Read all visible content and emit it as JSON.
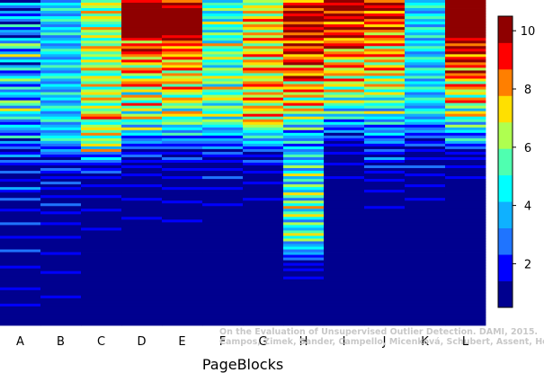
{
  "chart_data": {
    "type": "heatmap",
    "xlabel": "PageBlocks",
    "categories": [
      "A",
      "B",
      "C",
      "D",
      "E",
      "F",
      "G",
      "H",
      "I",
      "J",
      "K",
      "L"
    ],
    "colorbar": {
      "range": [
        0.5,
        10.5
      ],
      "ticks": [
        2,
        4,
        6,
        8,
        10
      ],
      "colors": [
        "#00008f",
        "#0000ff",
        "#1f74ff",
        "#0fb1ff",
        "#00ffff",
        "#4fffb0",
        "#afff50",
        "#ffe000",
        "#ff7f00",
        "#ff0000",
        "#8f0000"
      ]
    },
    "row_count": 120,
    "columns": [
      [
        1,
        5,
        3,
        1,
        4,
        2,
        5,
        3,
        1,
        6,
        2,
        4,
        3,
        1,
        5,
        3,
        7,
        6,
        2,
        4,
        8,
        3,
        5,
        1,
        4,
        6,
        2,
        3,
        5,
        7,
        4,
        2,
        6,
        3,
        5,
        4,
        2,
        7,
        6,
        3,
        8,
        5,
        4,
        6,
        3,
        2,
        5,
        4,
        3,
        2,
        6,
        1,
        4,
        2,
        3,
        1,
        2,
        4,
        1,
        3,
        2,
        1,
        1,
        3,
        1,
        1,
        2,
        1,
        1,
        4,
        2,
        1,
        1,
        3,
        1,
        1,
        1,
        2,
        1,
        1,
        1,
        1,
        3,
        1,
        1,
        1,
        1,
        2,
        1,
        1,
        1,
        1,
        3,
        1,
        1,
        1,
        1,
        1,
        2,
        1,
        1,
        1,
        1,
        1,
        1,
        1,
        2,
        1,
        1,
        1,
        1,
        1,
        2,
        1,
        1,
        1,
        1,
        1,
        1,
        1
      ],
      [
        3,
        5,
        4,
        6,
        4,
        3,
        5,
        6,
        4,
        3,
        5,
        4,
        6,
        3,
        4,
        5,
        3,
        4,
        6,
        5,
        4,
        3,
        5,
        4,
        6,
        4,
        3,
        5,
        6,
        4,
        3,
        5,
        4,
        3,
        6,
        4,
        5,
        3,
        4,
        6,
        5,
        3,
        4,
        5,
        6,
        3,
        4,
        5,
        3,
        4,
        5,
        6,
        4,
        3,
        2,
        4,
        3,
        2,
        1,
        3,
        2,
        1,
        3,
        2,
        1,
        2,
        1,
        3,
        1,
        2,
        1,
        1,
        2,
        1,
        1,
        3,
        1,
        1,
        2,
        1,
        1,
        1,
        2,
        1,
        1,
        1,
        1,
        2,
        1,
        1,
        1,
        1,
        1,
        2,
        1,
        1,
        1,
        1,
        1,
        1,
        2,
        1,
        1,
        1,
        1,
        1,
        1,
        1,
        1,
        2,
        1,
        1,
        1,
        1,
        1,
        1,
        1,
        1,
        1,
        1
      ],
      [
        6,
        8,
        7,
        5,
        9,
        6,
        8,
        7,
        6,
        5,
        9,
        7,
        6,
        8,
        5,
        7,
        6,
        9,
        8,
        6,
        7,
        5,
        8,
        6,
        7,
        9,
        6,
        5,
        8,
        7,
        6,
        9,
        5,
        7,
        8,
        6,
        9,
        7,
        5,
        8,
        6,
        7,
        9,
        10,
        6,
        5,
        7,
        8,
        6,
        9,
        5,
        7,
        6,
        8,
        4,
        9,
        3,
        2,
        5,
        3,
        2,
        1,
        2,
        3,
        1,
        2,
        1,
        1,
        2,
        1,
        1,
        1,
        2,
        1,
        1,
        1,
        1,
        2,
        1,
        1,
        1,
        1,
        1,
        1,
        2,
        1,
        1,
        1,
        1,
        1,
        1,
        1,
        1,
        1,
        1,
        1,
        1,
        1,
        1,
        1,
        1,
        1,
        1,
        1,
        1,
        1,
        1,
        1,
        1,
        1,
        1,
        1,
        1,
        1,
        1,
        1,
        1,
        1,
        1,
        1
      ],
      [
        10,
        11,
        11,
        11,
        11,
        11,
        11,
        11,
        11,
        11,
        11,
        11,
        11,
        11,
        10,
        7,
        10,
        9,
        11,
        10,
        9,
        7,
        10,
        8,
        6,
        9,
        10,
        7,
        5,
        8,
        9,
        10,
        6,
        8,
        4,
        9,
        7,
        5,
        10,
        6,
        8,
        4,
        7,
        9,
        5,
        6,
        3,
        8,
        4,
        5,
        2,
        3,
        4,
        2,
        3,
        1,
        2,
        3,
        1,
        2,
        1,
        2,
        1,
        1,
        2,
        1,
        1,
        1,
        2,
        1,
        1,
        1,
        1,
        2,
        1,
        1,
        1,
        1,
        1,
        1,
        2,
        1,
        1,
        1,
        1,
        1,
        1,
        1,
        1,
        1,
        1,
        1,
        1,
        1,
        1,
        1,
        1,
        1,
        1,
        1,
        1,
        1,
        1,
        1,
        1,
        1,
        1,
        1,
        1,
        1,
        1,
        1,
        1,
        1,
        1,
        1,
        1,
        1,
        1,
        1
      ],
      [
        9,
        11,
        10,
        11,
        11,
        11,
        11,
        11,
        11,
        11,
        11,
        11,
        11,
        10,
        11,
        9,
        10,
        8,
        10,
        9,
        8,
        10,
        7,
        9,
        8,
        10,
        6,
        9,
        7,
        8,
        9,
        6,
        10,
        8,
        7,
        5,
        9,
        8,
        6,
        7,
        4,
        9,
        8,
        5,
        6,
        7,
        4,
        5,
        3,
        6,
        2,
        4,
        3,
        2,
        3,
        1,
        2,
        1,
        3,
        2,
        1,
        1,
        2,
        1,
        1,
        2,
        1,
        1,
        1,
        2,
        1,
        1,
        1,
        1,
        2,
        1,
        1,
        1,
        1,
        1,
        1,
        2,
        1,
        1,
        1,
        1,
        1,
        1,
        1,
        1,
        1,
        1,
        1,
        1,
        1,
        1,
        1,
        1,
        1,
        1,
        1,
        1,
        1,
        1,
        1,
        1,
        1,
        1,
        1,
        1,
        1,
        1,
        1,
        1,
        1,
        1,
        1,
        1,
        1,
        1
      ],
      [
        4,
        6,
        5,
        7,
        4,
        5,
        6,
        4,
        8,
        5,
        6,
        4,
        7,
        5,
        6,
        4,
        9,
        6,
        5,
        7,
        6,
        8,
        5,
        6,
        4,
        7,
        6,
        5,
        8,
        6,
        7,
        4,
        9,
        6,
        5,
        7,
        8,
        6,
        4,
        7,
        6,
        5,
        8,
        4,
        7,
        6,
        5,
        3,
        4,
        5,
        2,
        4,
        3,
        2,
        4,
        1,
        3,
        2,
        1,
        2,
        1,
        1,
        2,
        1,
        1,
        3,
        1,
        1,
        1,
        2,
        1,
        1,
        1,
        1,
        1,
        2,
        1,
        1,
        1,
        1,
        1,
        1,
        1,
        1,
        1,
        1,
        1,
        1,
        1,
        1,
        1,
        1,
        1,
        1,
        1,
        1,
        1,
        1,
        1,
        1,
        1,
        1,
        1,
        1,
        1,
        1,
        1,
        1,
        1,
        1,
        1,
        1,
        1,
        1,
        1,
        1,
        1,
        1,
        1,
        1
      ],
      [
        7,
        6,
        8,
        7,
        9,
        6,
        8,
        10,
        7,
        9,
        8,
        6,
        9,
        7,
        10,
        8,
        6,
        9,
        7,
        8,
        10,
        6,
        9,
        8,
        7,
        10,
        9,
        6,
        8,
        7,
        9,
        10,
        8,
        6,
        9,
        7,
        10,
        8,
        6,
        9,
        8,
        7,
        10,
        6,
        9,
        8,
        7,
        6,
        5,
        4,
        6,
        3,
        5,
        4,
        2,
        3,
        1,
        2,
        1,
        3,
        2,
        1,
        1,
        2,
        1,
        1,
        1,
        2,
        1,
        1,
        1,
        1,
        1,
        2,
        1,
        1,
        1,
        1,
        1,
        1,
        1,
        1,
        1,
        1,
        1,
        1,
        1,
        1,
        1,
        1,
        1,
        1,
        1,
        1,
        1,
        1,
        1,
        1,
        1,
        1,
        1,
        1,
        1,
        1,
        1,
        1,
        1,
        1,
        1,
        1,
        1,
        1,
        1,
        1,
        1,
        1,
        1,
        1,
        1,
        1
      ],
      [
        8,
        10,
        11,
        9,
        11,
        10,
        11,
        11,
        9,
        11,
        10,
        11,
        9,
        11,
        10,
        8,
        11,
        9,
        10,
        11,
        8,
        9,
        10,
        11,
        7,
        10,
        9,
        8,
        11,
        10,
        6,
        9,
        8,
        10,
        7,
        9,
        5,
        8,
        10,
        6,
        9,
        7,
        4,
        8,
        5,
        6,
        3,
        7,
        2,
        5,
        4,
        3,
        6,
        2,
        5,
        3,
        4,
        6,
        3,
        5,
        4,
        7,
        3,
        5,
        8,
        4,
        6,
        3,
        7,
        5,
        4,
        8,
        6,
        3,
        7,
        5,
        9,
        4,
        6,
        8,
        5,
        3,
        7,
        5,
        4,
        6,
        8,
        5,
        7,
        3,
        4,
        5,
        3,
        4,
        2,
        3,
        1,
        2,
        1,
        2,
        1,
        1,
        2,
        1,
        1,
        1,
        1,
        1,
        1,
        1,
        1,
        1,
        1,
        1,
        1,
        1,
        1,
        1,
        1,
        1
      ],
      [
        11,
        10,
        11,
        11,
        9,
        11,
        10,
        11,
        8,
        10,
        11,
        9,
        10,
        11,
        8,
        9,
        10,
        11,
        7,
        9,
        10,
        8,
        6,
        9,
        10,
        7,
        8,
        9,
        6,
        10,
        7,
        8,
        5,
        9,
        6,
        7,
        4,
        8,
        6,
        5,
        3,
        7,
        4,
        6,
        2,
        5,
        3,
        2,
        4,
        1,
        3,
        2,
        1,
        2,
        1,
        1,
        2,
        1,
        1,
        1,
        2,
        1,
        1,
        1,
        1,
        2,
        1,
        1,
        1,
        1,
        1,
        1,
        1,
        1,
        1,
        1,
        1,
        1,
        1,
        1,
        1,
        1,
        1,
        1,
        1,
        1,
        1,
        1,
        1,
        1,
        1,
        1,
        1,
        1,
        1,
        1,
        1,
        1,
        1,
        1,
        1,
        1,
        1,
        1,
        1,
        1,
        1,
        1,
        1,
        1,
        1,
        1,
        1,
        1,
        1,
        1,
        1,
        1,
        1,
        1
      ],
      [
        9,
        11,
        10,
        11,
        8,
        10,
        11,
        9,
        10,
        8,
        11,
        9,
        7,
        10,
        9,
        8,
        10,
        6,
        9,
        8,
        10,
        7,
        9,
        6,
        8,
        10,
        7,
        9,
        5,
        8,
        6,
        9,
        7,
        5,
        8,
        6,
        4,
        7,
        5,
        6,
        3,
        8,
        4,
        5,
        3,
        6,
        2,
        4,
        3,
        5,
        2,
        3,
        4,
        2,
        1,
        3,
        2,
        1,
        4,
        2,
        1,
        3,
        1,
        2,
        1,
        1,
        2,
        1,
        1,
        1,
        2,
        1,
        1,
        1,
        1,
        1,
        2,
        1,
        1,
        1,
        1,
        1,
        1,
        1,
        1,
        1,
        1,
        1,
        1,
        1,
        1,
        1,
        1,
        1,
        1,
        1,
        1,
        1,
        1,
        1,
        1,
        1,
        1,
        1,
        1,
        1,
        1,
        1,
        1,
        1,
        1,
        1,
        1,
        1,
        1,
        1,
        1,
        1,
        1,
        1
      ],
      [
        4,
        5,
        6,
        4,
        3,
        5,
        6,
        4,
        5,
        3,
        6,
        5,
        4,
        6,
        3,
        5,
        4,
        6,
        5,
        3,
        4,
        6,
        5,
        4,
        3,
        6,
        5,
        4,
        6,
        3,
        5,
        4,
        6,
        5,
        3,
        4,
        6,
        5,
        4,
        3,
        5,
        6,
        4,
        3,
        5,
        4,
        2,
        3,
        4,
        2,
        3,
        1,
        2,
        3,
        1,
        2,
        1,
        1,
        2,
        1,
        1,
        3,
        1,
        1,
        2,
        1,
        1,
        1,
        2,
        1,
        1,
        1,
        1,
        2,
        1,
        1,
        1,
        1,
        1,
        1,
        1,
        1,
        1,
        1,
        1,
        1,
        1,
        1,
        1,
        1,
        1,
        1,
        1,
        1,
        1,
        1,
        1,
        1,
        1,
        1,
        1,
        1,
        1,
        1,
        1,
        1,
        1,
        1,
        1,
        1,
        1,
        1,
        1,
        1,
        1,
        1,
        1,
        1,
        1,
        1
      ],
      [
        11,
        11,
        11,
        11,
        11,
        11,
        11,
        11,
        11,
        11,
        11,
        11,
        11,
        11,
        10,
        11,
        9,
        11,
        10,
        11,
        8,
        10,
        11,
        9,
        10,
        7,
        11,
        9,
        10,
        8,
        6,
        10,
        9,
        7,
        8,
        5,
        9,
        10,
        6,
        7,
        4,
        8,
        9,
        5,
        6,
        3,
        7,
        4,
        5,
        2,
        3,
        6,
        4,
        2,
        3,
        1,
        2,
        1,
        2,
        1,
        1,
        2,
        1,
        1,
        1,
        2,
        1,
        1,
        1,
        1,
        1,
        1,
        1,
        1,
        1,
        1,
        1,
        1,
        1,
        1,
        1,
        1,
        1,
        1,
        1,
        1,
        1,
        1,
        1,
        1,
        1,
        1,
        1,
        1,
        1,
        1,
        1,
        1,
        1,
        1,
        1,
        1,
        1,
        1,
        1,
        1,
        1,
        1,
        1,
        1,
        1,
        1,
        1,
        1,
        1,
        1,
        1,
        1,
        1,
        1
      ]
    ]
  },
  "watermark": {
    "line1": "On the Evaluation of Unsupervised Outlier Detection. DAMI, 2015.",
    "line2": "Campos, Zimek, Sander, Campello, Micenková, Schubert, Assent, Houle"
  }
}
